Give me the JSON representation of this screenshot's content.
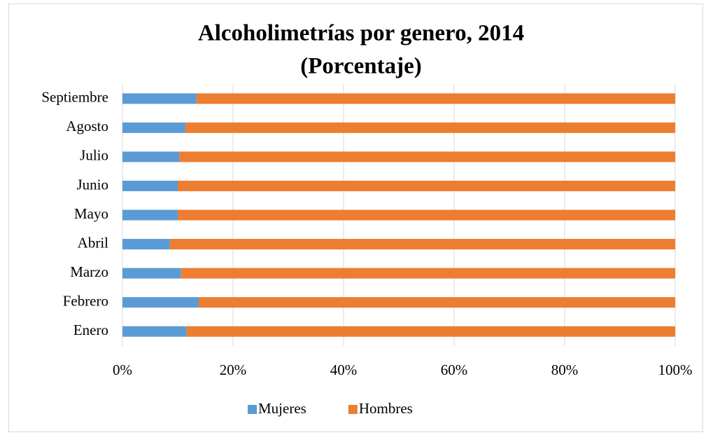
{
  "chart_data": {
    "type": "stacked_bar_horizontal",
    "title": "Alcoholimetrías por genero, 2014",
    "subtitle": "(Porcentaje)",
    "categories": [
      "Enero",
      "Febrero",
      "Marzo",
      "Abril",
      "Mayo",
      "Junio",
      "Julio",
      "Agosto",
      "Septiembre"
    ],
    "series": [
      {
        "name": "Mujeres",
        "color": "#5b9bd5",
        "values": [
          11.6,
          13.8,
          10.6,
          8.6,
          10.0,
          10.0,
          10.3,
          11.4,
          13.4
        ]
      },
      {
        "name": "Hombres",
        "color": "#ed7d31",
        "values": [
          88.4,
          86.2,
          89.4,
          91.4,
          90.0,
          90.0,
          89.7,
          88.6,
          86.6
        ]
      }
    ],
    "xlim": [
      0,
      100
    ],
    "xticks": [
      {
        "value": 0,
        "label": "0%"
      },
      {
        "value": 20,
        "label": "20%"
      },
      {
        "value": 40,
        "label": "40%"
      },
      {
        "value": 60,
        "label": "60%"
      },
      {
        "value": 80,
        "label": "80%"
      },
      {
        "value": 100,
        "label": "100%"
      }
    ],
    "grid": true,
    "legend": "bottom"
  }
}
